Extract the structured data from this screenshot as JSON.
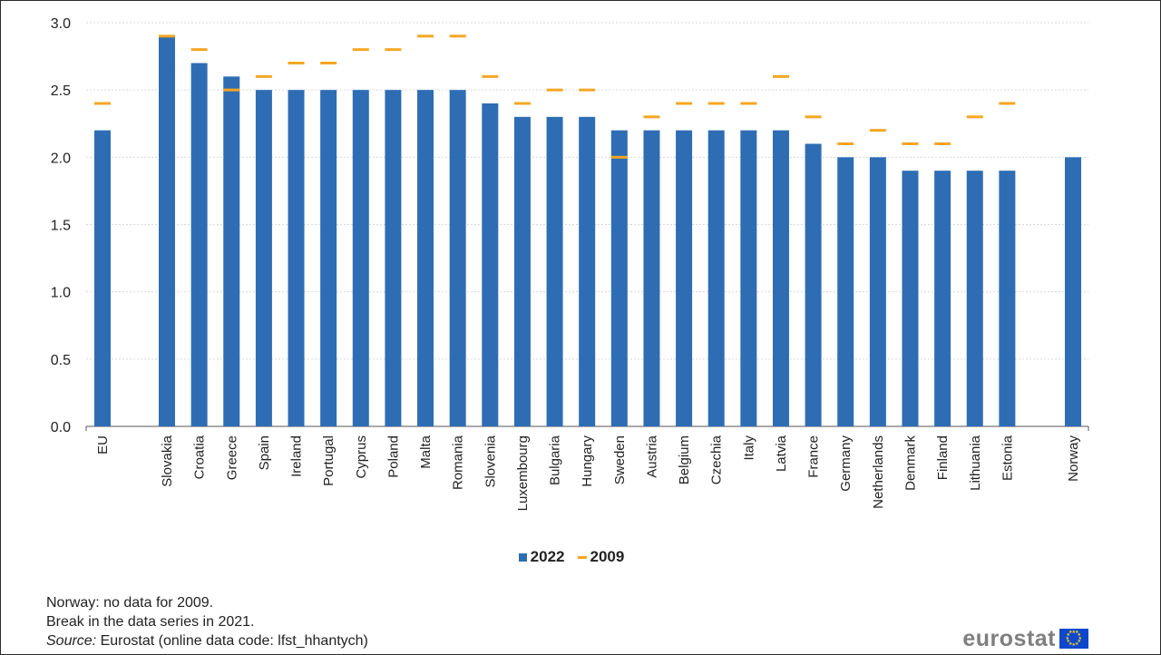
{
  "chart_data": {
    "type": "bar",
    "categories": [
      "EU",
      "Slovakia",
      "Croatia",
      "Greece",
      "Spain",
      "Ireland",
      "Portugal",
      "Cyprus",
      "Poland",
      "Malta",
      "Romania",
      "Slovenia",
      "Luxembourg",
      "Bulgaria",
      "Hungary",
      "Sweden",
      "Austria",
      "Belgium",
      "Czechia",
      "Italy",
      "Latvia",
      "France",
      "Germany",
      "Netherlands",
      "Denmark",
      "Finland",
      "Lithuania",
      "Estonia",
      "Norway"
    ],
    "series": [
      {
        "name": "2022",
        "type": "bar",
        "color": "#2e6db3",
        "values": [
          2.2,
          2.9,
          2.7,
          2.6,
          2.5,
          2.5,
          2.5,
          2.5,
          2.5,
          2.5,
          2.5,
          2.4,
          2.3,
          2.3,
          2.3,
          2.2,
          2.2,
          2.2,
          2.2,
          2.2,
          2.2,
          2.1,
          2.0,
          2.0,
          1.9,
          1.9,
          1.9,
          1.9,
          2.0
        ]
      },
      {
        "name": "2009",
        "type": "marker",
        "color": "#f5a623",
        "values": [
          2.4,
          2.9,
          2.8,
          2.5,
          2.6,
          2.7,
          2.7,
          2.8,
          2.8,
          2.9,
          2.9,
          2.6,
          2.4,
          2.5,
          2.5,
          2.0,
          2.3,
          2.4,
          2.4,
          2.4,
          2.6,
          2.3,
          2.1,
          2.2,
          2.1,
          2.1,
          2.3,
          2.4,
          null
        ]
      }
    ],
    "ylim": [
      0,
      3.0
    ],
    "yticks": [
      "0.0",
      "0.5",
      "1.0",
      "1.5",
      "2.0",
      "2.5",
      "3.0"
    ],
    "grid": true,
    "legend_position": "bottom-center"
  },
  "notes": {
    "line1": "Norway: no data for 2009.",
    "line2": "Break in the data series in 2021.",
    "source_label": "Source:",
    "source_text": "Eurostat (online data code: lfst_hhantych)"
  },
  "logo": {
    "text": "eurostat"
  }
}
